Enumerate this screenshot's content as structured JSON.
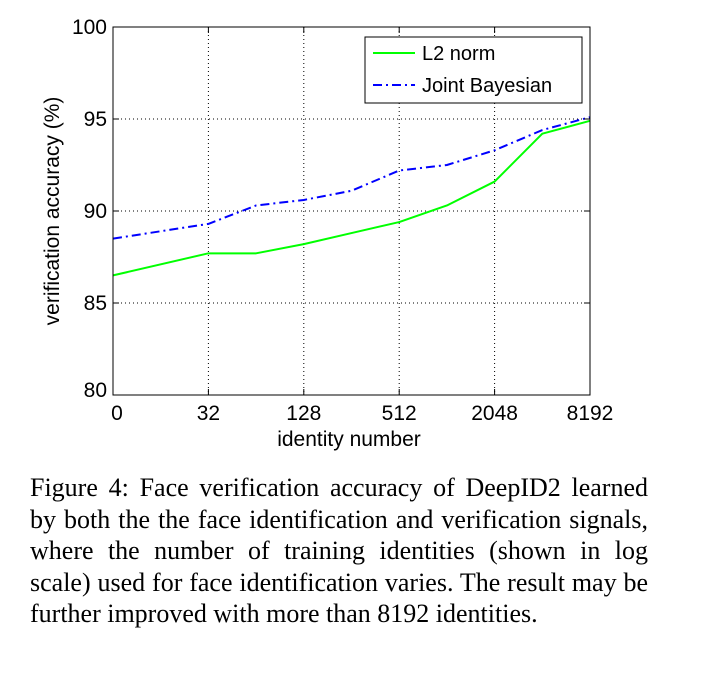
{
  "chart_data": {
    "type": "line",
    "title": "",
    "xlabel": "identity number",
    "ylabel": "verification accuracy (%)",
    "x_scale": "log2",
    "x_ticks": [
      "0",
      "32",
      "128",
      "512",
      "2048",
      "8192"
    ],
    "y_ticks": [
      "80",
      "85",
      "90",
      "95",
      "100"
    ],
    "ylim": [
      80,
      100
    ],
    "grid": true,
    "legend_position": "top-right",
    "x": [
      "0",
      "32",
      "64",
      "128",
      "256",
      "512",
      "1024",
      "2048",
      "4096",
      "8192"
    ],
    "series": [
      {
        "name": "L2 norm",
        "color": "#00ff00",
        "style": "solid",
        "values": [
          86.5,
          87.7,
          87.7,
          88.2,
          88.8,
          89.4,
          90.3,
          91.6,
          94.2,
          94.9
        ]
      },
      {
        "name": "Joint Bayesian",
        "color": "#0000ff",
        "style": "dash-dot",
        "values": [
          88.5,
          89.3,
          90.3,
          90.6,
          91.1,
          92.2,
          92.5,
          93.3,
          94.4,
          95.1
        ]
      }
    ]
  },
  "caption": "Figure 4: Face verification accuracy of DeepID2 learned by both the the face identification and verification signals, where the number of training identities (shown in log scale) used for face identification varies.  The result may be further improved with more than 8192 identities."
}
